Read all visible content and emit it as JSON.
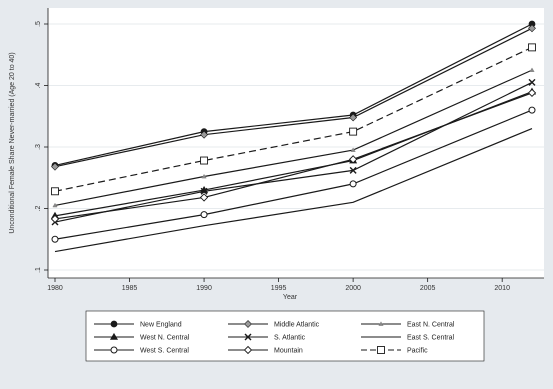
{
  "chart_data": {
    "type": "line",
    "xlabel": "Year",
    "ylabel": "Unconditional Female Share Never-married (Age 20 to 40)",
    "x": [
      1980,
      1990,
      2000,
      2012
    ],
    "xlim": [
      1980,
      2012
    ],
    "ylim": [
      0.1,
      0.5
    ],
    "xticks": [
      1980,
      1985,
      1990,
      1995,
      2000,
      2005,
      2010
    ],
    "xtick_labels": [
      "1980",
      "1985",
      "1990",
      "1995",
      "2000",
      "2005",
      "2010"
    ],
    "yticks": [
      0.1,
      0.2,
      0.3,
      0.4,
      0.5
    ],
    "ytick_labels": [
      ".1",
      ".2",
      ".3",
      ".4",
      ".5"
    ],
    "grid": true,
    "legend_position": "bottom",
    "series": [
      {
        "name": "New England",
        "values": [
          0.27,
          0.325,
          0.352,
          0.5
        ],
        "marker": "filled-circle",
        "dash": "solid"
      },
      {
        "name": "Middle Atlantic",
        "values": [
          0.268,
          0.32,
          0.348,
          0.493
        ],
        "marker": "filled-diamond",
        "dash": "solid"
      },
      {
        "name": "East N. Central",
        "values": [
          0.205,
          0.252,
          0.295,
          0.425
        ],
        "marker": "small-triangle",
        "dash": "solid"
      },
      {
        "name": "West N. Central",
        "values": [
          0.188,
          0.23,
          0.278,
          0.39
        ],
        "marker": "filled-triangle",
        "dash": "solid"
      },
      {
        "name": "S. Atlantic",
        "values": [
          0.178,
          0.228,
          0.262,
          0.405
        ],
        "marker": "x",
        "dash": "solid"
      },
      {
        "name": "East S. Central",
        "values": [
          0.13,
          0.172,
          0.21,
          0.33
        ],
        "marker": "none",
        "dash": "solid"
      },
      {
        "name": "West S. Central",
        "values": [
          0.15,
          0.19,
          0.24,
          0.36
        ],
        "marker": "hollow-circle",
        "dash": "solid"
      },
      {
        "name": "Mountain",
        "values": [
          0.183,
          0.218,
          0.28,
          0.388
        ],
        "marker": "hollow-diamond",
        "dash": "solid"
      },
      {
        "name": "Pacific",
        "values": [
          0.228,
          0.278,
          0.325,
          0.462
        ],
        "marker": "hollow-square",
        "dash": "dashed"
      }
    ]
  },
  "colors": {
    "background": "#e6eaee",
    "plot_background": "#ffffff",
    "line": "#1a1a1a",
    "grid": "#dfe4e8"
  }
}
